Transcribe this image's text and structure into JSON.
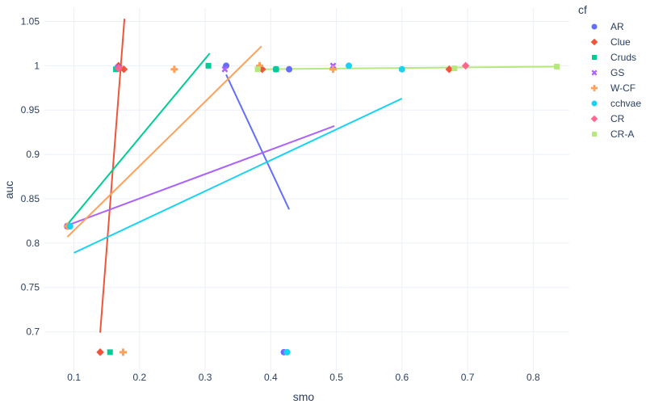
{
  "chart_data": {
    "type": "scatter",
    "xlabel": "smo",
    "ylabel": "auc",
    "xlim": [
      0.055,
      0.855
    ],
    "ylim": [
      0.655,
      1.065
    ],
    "xticks": [
      0.1,
      0.2,
      0.3,
      0.4,
      0.5,
      0.6,
      0.7,
      0.8
    ],
    "yticks": [
      0.7,
      0.75,
      0.8,
      0.85,
      0.9,
      0.95,
      1,
      1.05
    ],
    "xtick_labels": [
      "0.1",
      "0.2",
      "0.3",
      "0.4",
      "0.5",
      "0.6",
      "0.7",
      "0.8"
    ],
    "ytick_labels": [
      "0.7",
      "0.75",
      "0.8",
      "0.85",
      "0.9",
      "0.95",
      "1",
      "1.05"
    ],
    "grid": true,
    "legend": {
      "title": "cf",
      "position": "right"
    },
    "series": [
      {
        "name": "AR",
        "color": "#636efa",
        "marker": "circle",
        "points": [
          [
            0.094,
            0.819
          ],
          [
            0.168,
            0.998
          ],
          [
            0.332,
            1.0
          ],
          [
            0.408,
            0.996
          ],
          [
            0.428,
            0.996
          ],
          [
            0.42,
            0.677
          ]
        ],
        "trend": [
          [
            0.332,
            0.99
          ],
          [
            0.428,
            0.838
          ]
        ]
      },
      {
        "name": "Clue",
        "color": "#ef553b",
        "marker": "diamond",
        "points": [
          [
            0.09,
            0.819
          ],
          [
            0.14,
            0.677
          ],
          [
            0.168,
            1.0
          ],
          [
            0.176,
            0.996
          ],
          [
            0.387,
            0.996
          ],
          [
            0.672,
            0.996
          ]
        ],
        "trend": [
          [
            0.14,
            0.699
          ],
          [
            0.177,
            1.053
          ]
        ]
      },
      {
        "name": "Cruds",
        "color": "#00cc96",
        "marker": "square",
        "points": [
          [
            0.092,
            0.819
          ],
          [
            0.155,
            0.677
          ],
          [
            0.164,
            0.996
          ],
          [
            0.305,
            1.0
          ],
          [
            0.408,
            0.996
          ]
        ],
        "trend": [
          [
            0.09,
            0.821
          ],
          [
            0.307,
            1.014
          ]
        ]
      },
      {
        "name": "GS",
        "color": "#ab63fa",
        "marker": "x",
        "points": [
          [
            0.09,
            0.819
          ],
          [
            0.167,
            0.998
          ],
          [
            0.33,
            0.996
          ],
          [
            0.495,
            1.0
          ],
          [
            0.423,
            0.677
          ]
        ],
        "trend": [
          [
            0.09,
            0.82
          ],
          [
            0.497,
            0.932
          ]
        ]
      },
      {
        "name": "W-CF",
        "color": "#ffa15a",
        "marker": "cross",
        "points": [
          [
            0.09,
            0.819
          ],
          [
            0.175,
            0.677
          ],
          [
            0.253,
            0.996
          ],
          [
            0.383,
            1.0
          ],
          [
            0.495,
            0.996
          ]
        ],
        "trend": [
          [
            0.09,
            0.807
          ],
          [
            0.386,
            1.022
          ]
        ]
      },
      {
        "name": "cchvae",
        "color": "#19d3f3",
        "marker": "circle",
        "points": [
          [
            0.094,
            0.819
          ],
          [
            0.425,
            0.677
          ],
          [
            0.519,
            1.0
          ],
          [
            0.6,
            0.996
          ]
        ],
        "trend": [
          [
            0.1,
            0.789
          ],
          [
            0.6,
            0.963
          ]
        ]
      },
      {
        "name": "CR",
        "color": "#ff6692",
        "marker": "diamond",
        "points": [
          [
            0.168,
            0.997
          ],
          [
            0.697,
            1.0
          ]
        ],
        "trend": []
      },
      {
        "name": "CR-A",
        "color": "#b6e880",
        "marker": "square",
        "points": [
          [
            0.38,
            0.996
          ],
          [
            0.68,
            0.997
          ],
          [
            0.836,
            0.999
          ]
        ],
        "trend": [
          [
            0.38,
            0.996
          ],
          [
            0.836,
            0.999
          ]
        ]
      }
    ]
  }
}
